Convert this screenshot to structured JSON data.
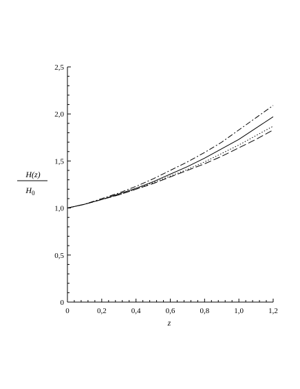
{
  "chart_data": {
    "type": "line",
    "xlabel": "z",
    "ylabel": {
      "numerator": "H(z)",
      "denominator_letter": "H",
      "denominator_subscript": "0"
    },
    "xlim": [
      0,
      1.2
    ],
    "ylim": [
      0,
      2.5
    ],
    "xticks": [
      {
        "value": 0,
        "label": "0"
      },
      {
        "value": 0.2,
        "label": "0,2"
      },
      {
        "value": 0.4,
        "label": "0,4"
      },
      {
        "value": 0.6,
        "label": "0,6"
      },
      {
        "value": 0.8,
        "label": "0,8"
      },
      {
        "value": 1.0,
        "label": "1,0"
      },
      {
        "value": 1.2,
        "label": "1,2"
      }
    ],
    "yticks": [
      {
        "value": 0,
        "label": "0"
      },
      {
        "value": 0.5,
        "label": "0,5"
      },
      {
        "value": 1.0,
        "label": "1,0"
      },
      {
        "value": 1.5,
        "label": "1,5"
      },
      {
        "value": 2.0,
        "label": "2,0"
      },
      {
        "value": 2.5,
        "label": "2,5"
      }
    ],
    "x": [
      0,
      0.1,
      0.2,
      0.3,
      0.4,
      0.5,
      0.6,
      0.7,
      0.8,
      0.9,
      1.0,
      1.1,
      1.2
    ],
    "series": [
      {
        "style": "solid",
        "values": [
          1.0,
          1.04,
          1.09,
          1.15,
          1.21,
          1.28,
          1.36,
          1.44,
          1.53,
          1.63,
          1.73,
          1.85,
          1.97
        ]
      },
      {
        "style": "dashdot",
        "values": [
          1.0,
          1.04,
          1.1,
          1.16,
          1.23,
          1.31,
          1.4,
          1.49,
          1.59,
          1.7,
          1.83,
          1.96,
          2.09
        ]
      },
      {
        "style": "dotted",
        "values": [
          1.0,
          1.04,
          1.09,
          1.14,
          1.2,
          1.27,
          1.34,
          1.41,
          1.49,
          1.58,
          1.67,
          1.77,
          1.87
        ]
      },
      {
        "style": "longdash",
        "values": [
          1.0,
          1.04,
          1.09,
          1.14,
          1.2,
          1.26,
          1.33,
          1.4,
          1.47,
          1.55,
          1.64,
          1.73,
          1.83
        ]
      }
    ],
    "grid": false,
    "legend": "none"
  }
}
